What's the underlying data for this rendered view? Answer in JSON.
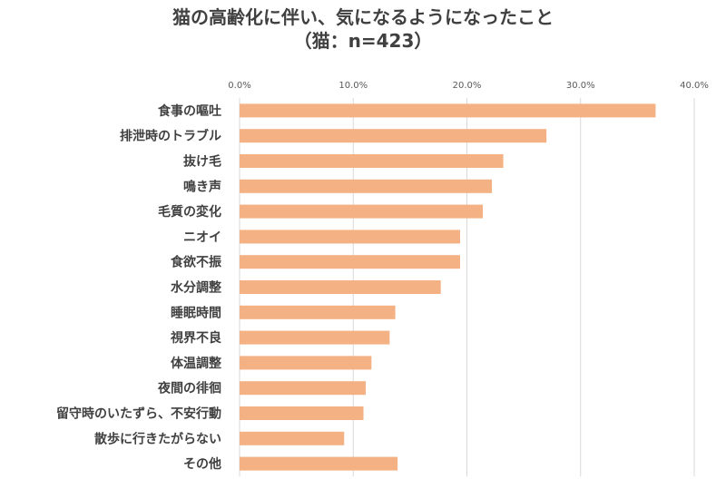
{
  "chart_data": {
    "type": "bar",
    "orientation": "horizontal",
    "title": "猫の高齢化に伴い、気になるようになったこと",
    "subtitle": "（猫：n=423）",
    "categories": [
      "食事の嘔吐",
      "排泄時のトラブル",
      "抜け毛",
      "鳴き声",
      "毛質の変化",
      "ニオイ",
      "食欲不振",
      "水分調整",
      "睡眠時間",
      "視界不良",
      "体温調整",
      "夜間の徘徊",
      "留守時のいたずら、不安行動",
      "散歩に行きたがらない",
      "その他"
    ],
    "values": [
      36.6,
      27.0,
      23.2,
      22.2,
      21.4,
      19.4,
      19.4,
      17.7,
      13.7,
      13.2,
      11.6,
      11.1,
      10.9,
      9.2,
      13.9
    ],
    "xlim": [
      0,
      40
    ],
    "ticks": [
      "0.0%",
      "10.0%",
      "20.0%",
      "30.0%",
      "40.0%"
    ],
    "tick_values": [
      0,
      10,
      20,
      30,
      40
    ],
    "grid": true,
    "bar_color": "#F4B183",
    "grid_color": "#D9D9D9"
  }
}
